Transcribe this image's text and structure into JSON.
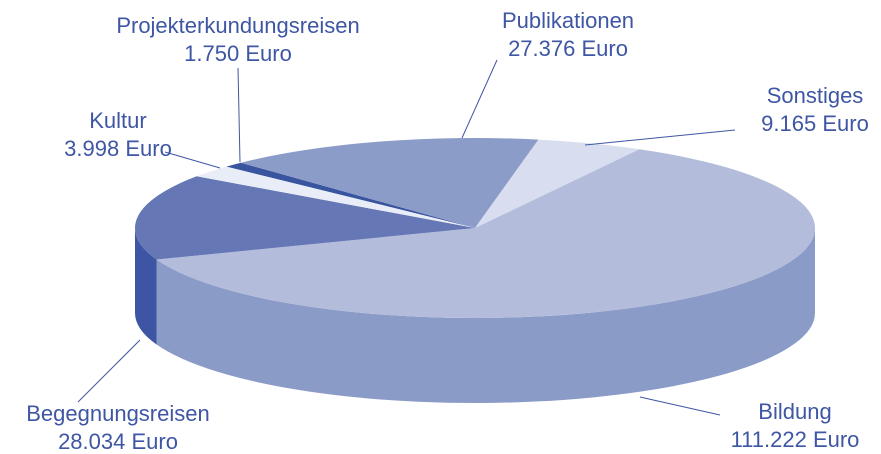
{
  "chart_data": {
    "type": "pie3d",
    "categories": [
      "Projekterkundungsreisen",
      "Publikationen",
      "Sonstiges",
      "Bildung",
      "Begegnungsreisen",
      "Kultur"
    ],
    "values": [
      1750,
      27376,
      9165,
      111222,
      28034,
      3998
    ],
    "value_labels": [
      "1.750 Euro",
      "27.376 Euro",
      "9.165 Euro",
      "111.222 Euro",
      "28.034 Euro",
      "3.998 Euro"
    ],
    "colors": [
      "#3a55a0",
      "#8b9cc8",
      "#d8def0",
      "#b3bddb",
      "#6677b5",
      "#e9edf7"
    ],
    "side_colors": [
      "#2c4488",
      "#6f80b3",
      "#b9c2df",
      "#8b9bc8",
      "#3d55a2",
      "#c9d0e6"
    ]
  }
}
